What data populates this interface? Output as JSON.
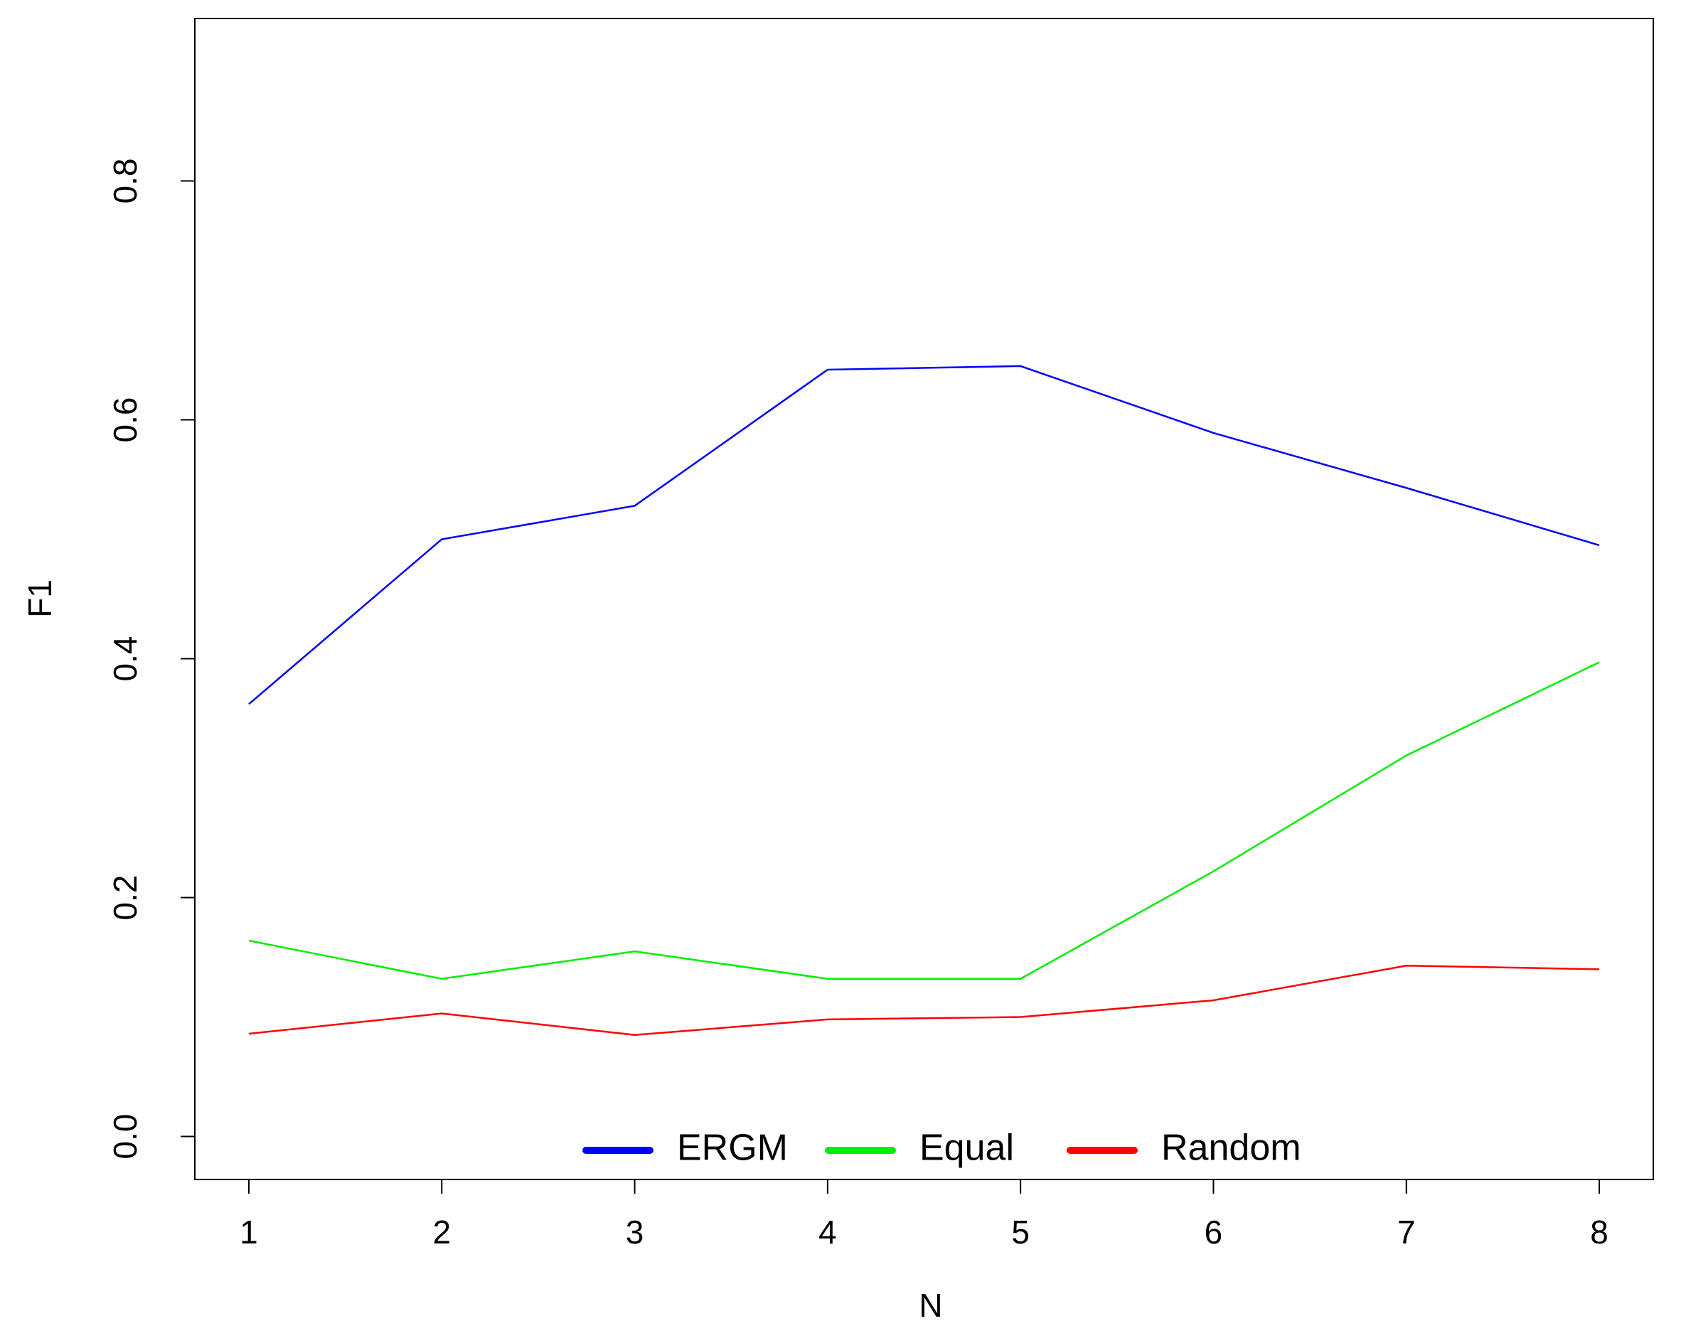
{
  "chart_data": {
    "type": "line",
    "x_label": "N",
    "y_label": "F1",
    "x": [
      1,
      2,
      3,
      4,
      5,
      6,
      7,
      8
    ],
    "xlim": [
      0.72,
      8.28
    ],
    "xticks": [
      1,
      2,
      3,
      4,
      5,
      6,
      7,
      8
    ],
    "ylim": [
      -0.036,
      0.936
    ],
    "yticks": [
      {
        "value": 0,
        "label": "0.0"
      },
      {
        "value": 0.2,
        "label": "0.2"
      },
      {
        "value": 0.4,
        "label": "0.4"
      },
      {
        "value": 0.6,
        "label": "0.6"
      },
      {
        "value": 0.8,
        "label": "0.8"
      }
    ],
    "legend": "bottom",
    "series": [
      {
        "name": "ERGM",
        "color": "#0000ff",
        "values": [
          0.362,
          0.5,
          0.528,
          0.642,
          0.645,
          0.589,
          0.543,
          0.495
        ]
      },
      {
        "name": "Equal",
        "color": "#00ee00",
        "values": [
          0.164,
          0.132,
          0.155,
          0.132,
          0.132,
          0.222,
          0.319,
          0.397
        ]
      },
      {
        "name": "Random",
        "color": "#ff0000",
        "values": [
          0.086,
          0.103,
          0.085,
          0.098,
          0.1,
          0.114,
          0.143,
          0.14
        ]
      }
    ]
  }
}
